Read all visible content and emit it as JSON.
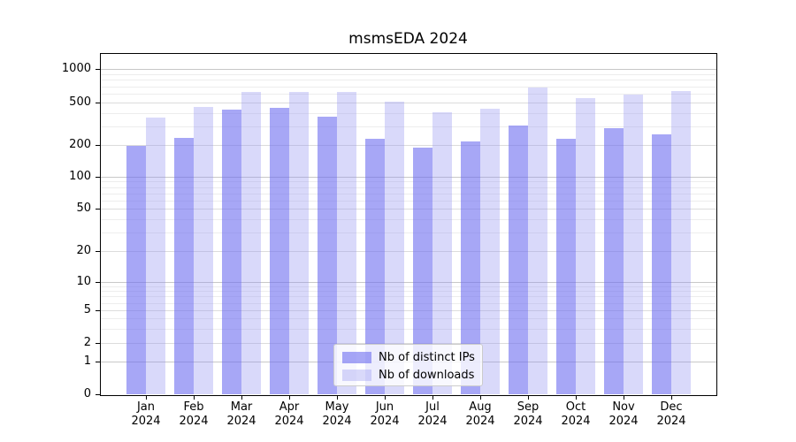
{
  "chart_data": {
    "type": "bar",
    "title": "msmsEDA 2024",
    "categories": [
      "Jan",
      "Feb",
      "Mar",
      "Apr",
      "May",
      "Jun",
      "Jul",
      "Aug",
      "Sep",
      "Oct",
      "Nov",
      "Dec"
    ],
    "year_label": "2024",
    "series": [
      {
        "name": "Nb of distinct IPs",
        "color": "rgba(108,108,240,0.6)",
        "values": [
          195,
          235,
          430,
          445,
          370,
          230,
          190,
          215,
          305,
          230,
          290,
          250
        ]
      },
      {
        "name": "Nb of downloads",
        "color": "rgba(146,146,240,0.35)",
        "values": [
          365,
          455,
          620,
          620,
          620,
          510,
          405,
          440,
          685,
          550,
          590,
          635
        ]
      }
    ],
    "y_axis": {
      "scale": "symlog",
      "ticks": [
        {
          "label": "0",
          "value": 0
        },
        {
          "label": "1",
          "value": 1
        },
        {
          "label": "2",
          "value": 2
        },
        {
          "label": "5",
          "value": 5
        },
        {
          "label": "10",
          "value": 10
        },
        {
          "label": "20",
          "value": 20
        },
        {
          "label": "50",
          "value": 50
        },
        {
          "label": "100",
          "value": 100
        },
        {
          "label": "200",
          "value": 200
        },
        {
          "label": "500",
          "value": 500
        },
        {
          "label": "1000",
          "value": 1000
        }
      ],
      "major_tick_values": [
        1,
        10,
        100,
        1000
      ],
      "minor_gridlines": [
        3,
        4,
        6,
        7,
        8,
        9,
        30,
        40,
        60,
        70,
        80,
        90,
        300,
        400,
        600,
        700,
        800,
        900
      ]
    },
    "legend_position": "lower center",
    "grid": true,
    "colors": {
      "major_gridline": "#c8c8c8",
      "labeled_minor_gridline": "#dcdcdc",
      "minor_gridline": "#ededed"
    }
  }
}
